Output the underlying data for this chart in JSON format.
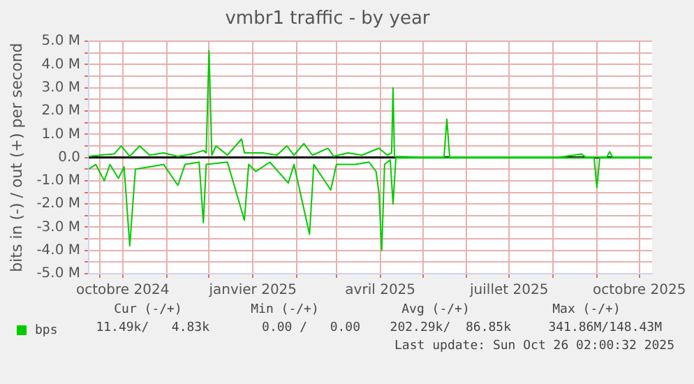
{
  "chart_data": {
    "type": "line",
    "title": "vmbr1 traffic - by year",
    "ylabel": "bits in (-) / out (+) per second",
    "xlim": [
      "2024-09-07",
      "2025-10-10"
    ],
    "xticks": [
      {
        "value": "2024-09-15",
        "label": null
      },
      {
        "value": "2024-10-01",
        "label": "octobre 2024"
      },
      {
        "value": "2024-11-01",
        "label": null
      },
      {
        "value": "2024-12-01",
        "label": null
      },
      {
        "value": "2025-01-01",
        "label": "janvier 2025"
      },
      {
        "value": "2025-02-01",
        "label": null
      },
      {
        "value": "2025-03-01",
        "label": null
      },
      {
        "value": "2025-04-01",
        "label": "avril 2025"
      },
      {
        "value": "2025-05-01",
        "label": null
      },
      {
        "value": "2025-06-01",
        "label": null
      },
      {
        "value": "2025-07-01",
        "label": "juillet 2025"
      },
      {
        "value": "2025-08-01",
        "label": null
      },
      {
        "value": "2025-09-01",
        "label": null
      },
      {
        "value": "2025-10-01",
        "label": "octobre 2025"
      }
    ],
    "ylim": [
      -5,
      5
    ],
    "yticks": [
      {
        "value": -5,
        "label": "-5.0 M"
      },
      {
        "value": -4.5,
        "label": null
      },
      {
        "value": -4,
        "label": "-4.0 M"
      },
      {
        "value": -3.5,
        "label": null
      },
      {
        "value": -3,
        "label": "-3.0 M"
      },
      {
        "value": -2.5,
        "label": null
      },
      {
        "value": -2,
        "label": "-2.0 M"
      },
      {
        "value": -1.5,
        "label": null
      },
      {
        "value": -1,
        "label": "-1.0 M"
      },
      {
        "value": -0.5,
        "label": null
      },
      {
        "value": 0,
        "label": "0.0"
      },
      {
        "value": 0.5,
        "label": null
      },
      {
        "value": 1,
        "label": "1.0 M"
      },
      {
        "value": 1.5,
        "label": null
      },
      {
        "value": 2,
        "label": "2.0 M"
      },
      {
        "value": 2.5,
        "label": null
      },
      {
        "value": 3,
        "label": "3.0 M"
      },
      {
        "value": 3.5,
        "label": null
      },
      {
        "value": 4,
        "label": "4.0 M"
      },
      {
        "value": 4.5,
        "label": null
      },
      {
        "value": 5,
        "label": "5.0 M"
      }
    ],
    "grid": true,
    "legend": "bottom left",
    "marker": "none",
    "line_style": "solid",
    "ref_lines": [
      {
        "axis": "y",
        "value": 0,
        "color": "#000000"
      }
    ],
    "series": [
      {
        "name": "bps",
        "color": "#00cc00",
        "x": [
          "2024-09-07",
          "2024-09-15",
          "2024-09-25",
          "2024-09-30",
          "2024-10-06",
          "2024-10-13",
          "2024-10-20",
          "2024-10-30",
          "2024-11-09",
          "2024-11-19",
          "2024-11-27",
          "2024-11-29",
          "2024-12-01",
          "2024-12-03",
          "2024-12-06",
          "2024-12-14",
          "2024-12-24",
          "2024-12-26",
          "2025-01-08",
          "2025-01-18",
          "2025-01-25",
          "2025-01-30",
          "2025-02-06",
          "2025-02-12",
          "2025-02-23",
          "2025-02-27",
          "2025-03-09",
          "2025-03-19",
          "2025-03-31",
          "2025-04-06",
          "2025-04-09",
          "2025-04-10",
          "2025-04-11",
          "2025-04-28",
          "2025-05-16",
          "2025-05-18",
          "2025-05-20",
          "2025-08-06",
          "2025-08-16",
          "2025-08-21",
          "2025-08-24",
          "2025-09-08",
          "2025-09-10",
          "2025-09-12",
          "2025-10-10"
        ],
        "values": [
          0.05,
          0.1,
          0.15,
          0.5,
          0.05,
          0.5,
          0.1,
          0.2,
          0.05,
          0.15,
          0.3,
          0.2,
          4.6,
          0.1,
          0.5,
          0.1,
          0.8,
          0.2,
          0.2,
          0.1,
          0.5,
          0.1,
          0.6,
          0.1,
          0.4,
          0.05,
          0.2,
          0.1,
          0.4,
          0.1,
          0.2,
          3.0,
          0.05,
          0.02,
          0.02,
          1.65,
          0.02,
          0.02,
          0.1,
          0.15,
          0.02,
          0.02,
          0.25,
          0.02,
          0.02
        ]
      },
      {
        "color": "#00cc00",
        "x": [
          "2024-09-07",
          "2024-09-12",
          "2024-09-18",
          "2024-09-22",
          "2024-09-28",
          "2024-10-02",
          "2024-10-06",
          "2024-10-10",
          "2024-10-20",
          "2024-10-30",
          "2024-11-09",
          "2024-11-14",
          "2024-11-24",
          "2024-11-27",
          "2024-11-29",
          "2024-12-14",
          "2024-12-26",
          "2024-12-29",
          "2025-01-03",
          "2025-01-13",
          "2025-01-26",
          "2025-01-30",
          "2025-02-10",
          "2025-02-13",
          "2025-02-25",
          "2025-03-01",
          "2025-03-14",
          "2025-03-24",
          "2025-03-29",
          "2025-03-31",
          "2025-04-02",
          "2025-04-04",
          "2025-04-08",
          "2025-04-10",
          "2025-04-12",
          "2025-08-06",
          "2025-08-30",
          "2025-09-01",
          "2025-09-03",
          "2025-10-10"
        ],
        "values": [
          -0.5,
          -0.3,
          -1.0,
          -0.3,
          -0.9,
          -0.4,
          -3.8,
          -0.5,
          -0.4,
          -0.3,
          -1.2,
          -0.3,
          -0.2,
          -2.8,
          -0.3,
          -0.2,
          -2.7,
          -0.3,
          -0.6,
          -0.2,
          -1.1,
          -0.3,
          -3.3,
          -0.3,
          -1.4,
          -0.3,
          -0.3,
          -0.2,
          -0.6,
          -1.5,
          -4.0,
          -0.3,
          -0.1,
          -2.0,
          -0.02,
          -0.02,
          -0.02,
          -1.3,
          -0.02,
          -0.02
        ]
      }
    ],
    "annotations": [
      "Cur (-/+)",
      "Min (-/+)",
      "Avg (-/+)",
      "Max (-/+)",
      "11.49k/   4.83k",
      "0.00 /   0.00",
      "202.29k/  86.85k",
      "341.86M/148.43M",
      "Last update: Sun Oct 26 02:00:32 2025"
    ]
  }
}
